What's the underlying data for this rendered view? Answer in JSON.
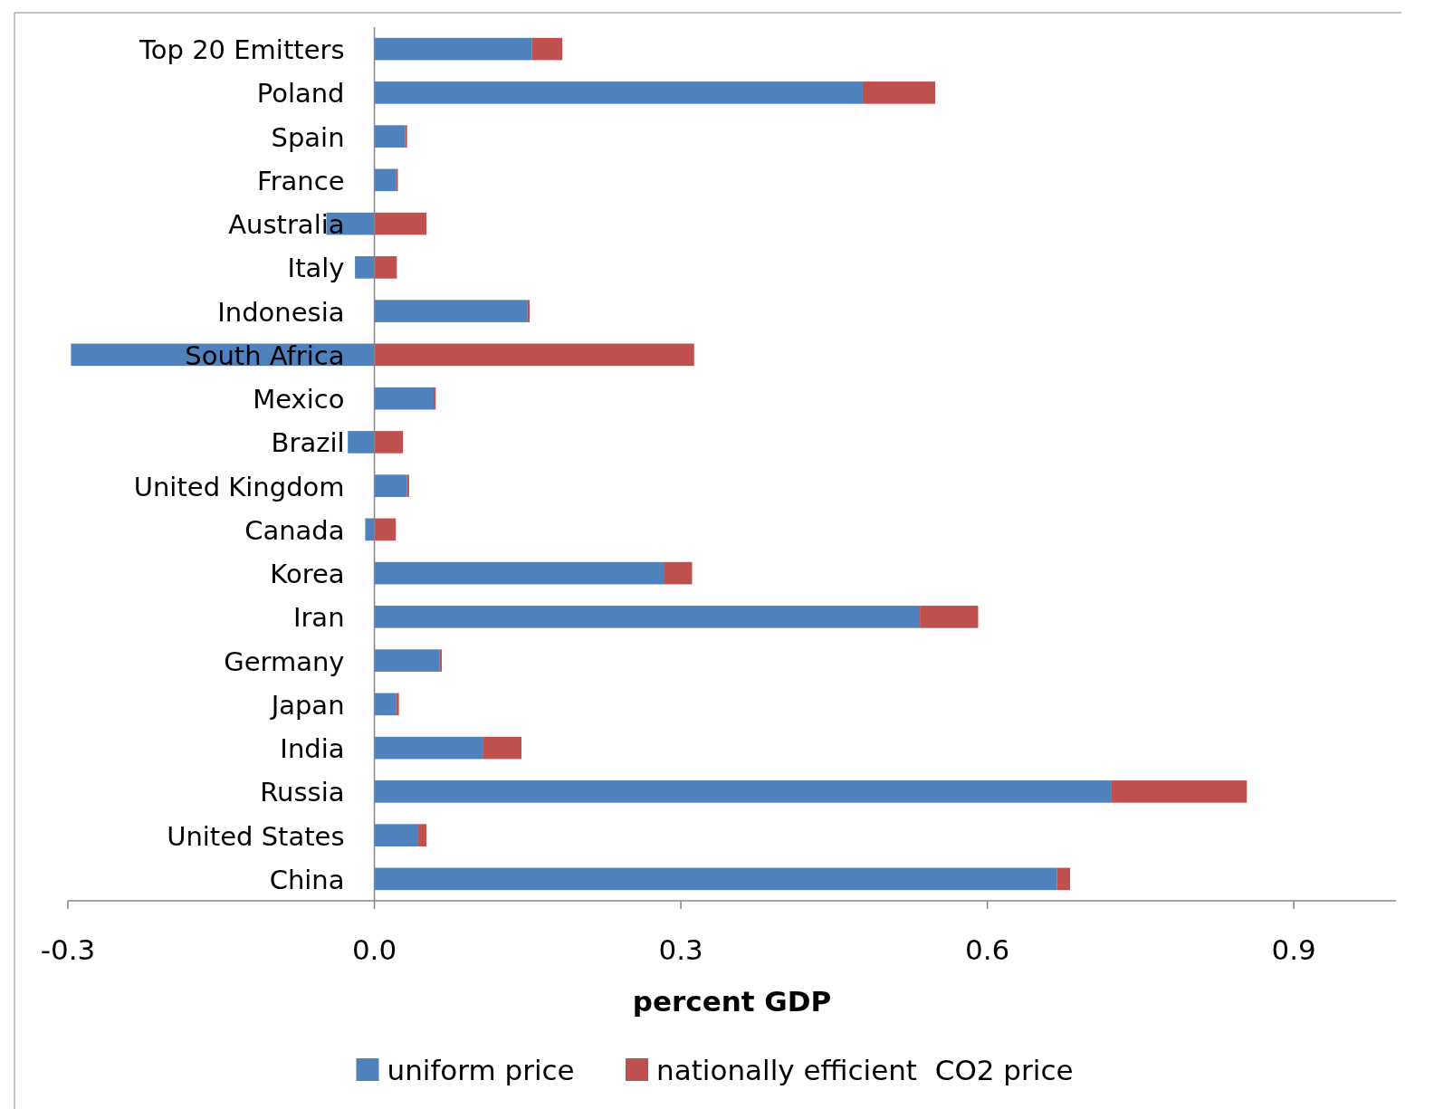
{
  "chart_data": {
    "type": "bar",
    "orientation": "horizontal",
    "stacked": true,
    "xlabel": "percent GDP",
    "legend": "bottom",
    "categories": [
      "Top 20 Emitters",
      "Poland",
      "Spain",
      "France",
      "Australia",
      "Italy",
      "Indonesia",
      "South Africa",
      "Mexico",
      "Brazil",
      "United Kingdom",
      "Canada",
      "Korea",
      "Iran",
      "Germany",
      "Japan",
      "India",
      "Russia",
      "United States",
      "China"
    ],
    "series": [
      {
        "name": "uniform price",
        "color": "#4f81bd",
        "values": [
          0.154,
          0.478,
          0.03,
          0.021,
          -0.047,
          -0.019,
          0.15,
          -0.297,
          0.058,
          -0.026,
          0.032,
          -0.009,
          0.284,
          0.534,
          0.064,
          0.021,
          0.106,
          0.721,
          0.043,
          0.668
        ]
      },
      {
        "name": "nationally efficient  CO2 price",
        "color": "#c0504d",
        "values": [
          0.03,
          0.071,
          0.002,
          0.002,
          0.051,
          0.022,
          0.002,
          0.313,
          0.002,
          0.028,
          0.002,
          0.021,
          0.027,
          0.057,
          0.002,
          0.003,
          0.038,
          0.133,
          0.008,
          0.013
        ]
      }
    ],
    "xlim": [
      -0.3,
      1.0
    ],
    "xticks": [
      -0.3,
      {
        "value": 0,
        "label": "0.0"
      },
      0.3,
      0.6,
      0.9
    ]
  }
}
